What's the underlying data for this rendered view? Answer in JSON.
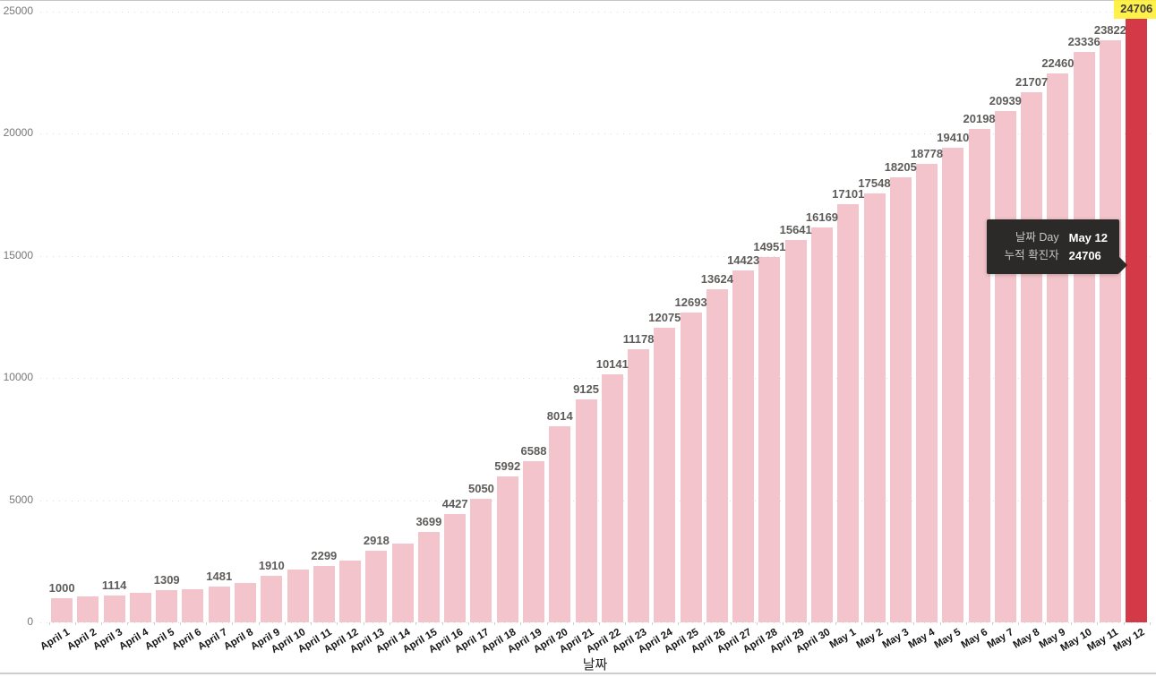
{
  "chart_data": {
    "type": "bar",
    "title": "",
    "xlabel": "날짜",
    "ylabel": "",
    "ylim": [
      0,
      25000
    ],
    "y_ticks": [
      "0",
      "5000",
      "10000",
      "15000",
      "20000",
      "25000"
    ],
    "grid": "horizontal-dotted",
    "legend": "none",
    "x_label_rotation_deg": -31,
    "points": [
      {
        "date": "April 1",
        "value": 1000,
        "label": "1000"
      },
      {
        "date": "April 2",
        "value": 1050,
        "label": "",
        "estimated": true
      },
      {
        "date": "April 3",
        "value": 1114,
        "label": "1114"
      },
      {
        "date": "April 4",
        "value": 1200,
        "label": "",
        "estimated": true
      },
      {
        "date": "April 5",
        "value": 1309,
        "label": "1309"
      },
      {
        "date": "April 6",
        "value": 1370,
        "label": "",
        "estimated": true
      },
      {
        "date": "April 7",
        "value": 1481,
        "label": "1481"
      },
      {
        "date": "April 8",
        "value": 1620,
        "label": "",
        "estimated": true
      },
      {
        "date": "April 9",
        "value": 1910,
        "label": "1910"
      },
      {
        "date": "April 10",
        "value": 2150,
        "label": "",
        "estimated": true
      },
      {
        "date": "April 11",
        "value": 2299,
        "label": "2299"
      },
      {
        "date": "April 12",
        "value": 2540,
        "label": "",
        "estimated": true
      },
      {
        "date": "April 13",
        "value": 2918,
        "label": "2918"
      },
      {
        "date": "April 14",
        "value": 3240,
        "label": "",
        "estimated": true
      },
      {
        "date": "April 15",
        "value": 3699,
        "label": "3699"
      },
      {
        "date": "April 16",
        "value": 4427,
        "label": "4427"
      },
      {
        "date": "April 17",
        "value": 5050,
        "label": "5050"
      },
      {
        "date": "April 18",
        "value": 5992,
        "label": "5992"
      },
      {
        "date": "April 19",
        "value": 6588,
        "label": "6588"
      },
      {
        "date": "April 20",
        "value": 8014,
        "label": "8014"
      },
      {
        "date": "April 21",
        "value": 9125,
        "label": "9125"
      },
      {
        "date": "April 22",
        "value": 10141,
        "label": "10141"
      },
      {
        "date": "April 23",
        "value": 11178,
        "label": "11178"
      },
      {
        "date": "April 24",
        "value": 12075,
        "label": "12075"
      },
      {
        "date": "April 25",
        "value": 12693,
        "label": "12693"
      },
      {
        "date": "April 26",
        "value": 13624,
        "label": "13624"
      },
      {
        "date": "April 27",
        "value": 14423,
        "label": "14423"
      },
      {
        "date": "April 28",
        "value": 14951,
        "label": "14951"
      },
      {
        "date": "April 29",
        "value": 15641,
        "label": "15641"
      },
      {
        "date": "April 30",
        "value": 16169,
        "label": "16169"
      },
      {
        "date": "May 1",
        "value": 17101,
        "label": "17101"
      },
      {
        "date": "May 2",
        "value": 17548,
        "label": "17548"
      },
      {
        "date": "May 3",
        "value": 18205,
        "label": "18205"
      },
      {
        "date": "May 4",
        "value": 18778,
        "label": "18778"
      },
      {
        "date": "May 5",
        "value": 19410,
        "label": "19410"
      },
      {
        "date": "May 6",
        "value": 20198,
        "label": "20198"
      },
      {
        "date": "May 7",
        "value": 20939,
        "label": "20939"
      },
      {
        "date": "May 8",
        "value": 21707,
        "label": "21707"
      },
      {
        "date": "May 9",
        "value": 22460,
        "label": "22460"
      },
      {
        "date": "May 10",
        "value": 23336,
        "label": "23336"
      },
      {
        "date": "May 11",
        "value": 23822,
        "label": "23822"
      },
      {
        "date": "May 12",
        "value": 24706,
        "label": "24706",
        "highlighted": true
      }
    ]
  },
  "tooltip": {
    "rows": [
      {
        "label": "날짜 Day",
        "value": "May 12"
      },
      {
        "label": "누적 확진자",
        "value": "24706"
      }
    ]
  },
  "colors": {
    "bar": "#F3C4CB",
    "bar_highlighted": "#D33946",
    "data_label": "#5E5C5A",
    "highlight_label_bg": "rgba(255,238,45,0.85)",
    "highlight_label_text": "#403D3B",
    "y_axis_label": "#797775",
    "x_axis_label": "#161514",
    "axis_title": "#252423",
    "gridline": "#DBDBDB",
    "tooltip_bg": "#2B2A29",
    "tooltip_label": "#C8C6C4",
    "tooltip_value": "#FFFFFF"
  }
}
